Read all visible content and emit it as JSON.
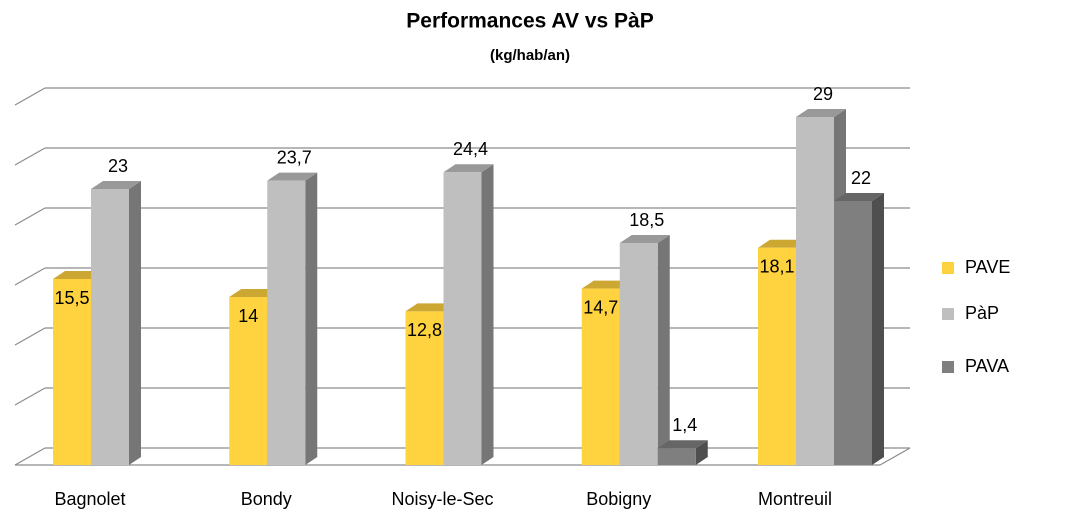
{
  "chart_data": {
    "type": "bar3d",
    "title": "Performances AV vs PàP",
    "subtitle": "(kg/hab/an)",
    "categories": [
      "Bagnolet",
      "Bondy",
      "Noisy-le-Sec",
      "Bobigny",
      "Montreuil"
    ],
    "series": [
      {
        "name": "PAVE",
        "color": "#ffd23f",
        "values": [
          15.5,
          14,
          12.8,
          14.7,
          18.1
        ],
        "value_labels": [
          "15,5",
          "14",
          "12,8",
          "14,7",
          "18,1"
        ]
      },
      {
        "name": "PàP",
        "color": "#bfbfbf",
        "values": [
          23,
          23.7,
          24.4,
          18.5,
          29
        ],
        "value_labels": [
          "23",
          "23,7",
          "24,4",
          "18,5",
          "29"
        ]
      },
      {
        "name": "PAVA",
        "color": "#7f7f7f",
        "values": [
          null,
          null,
          null,
          1.4,
          22
        ],
        "value_labels": [
          null,
          null,
          null,
          "1,4",
          "22"
        ]
      }
    ],
    "ylim": [
      0,
      30
    ],
    "yticks": [
      0,
      5,
      10,
      15,
      20,
      25,
      30
    ],
    "grid": true,
    "legend": "right"
  }
}
